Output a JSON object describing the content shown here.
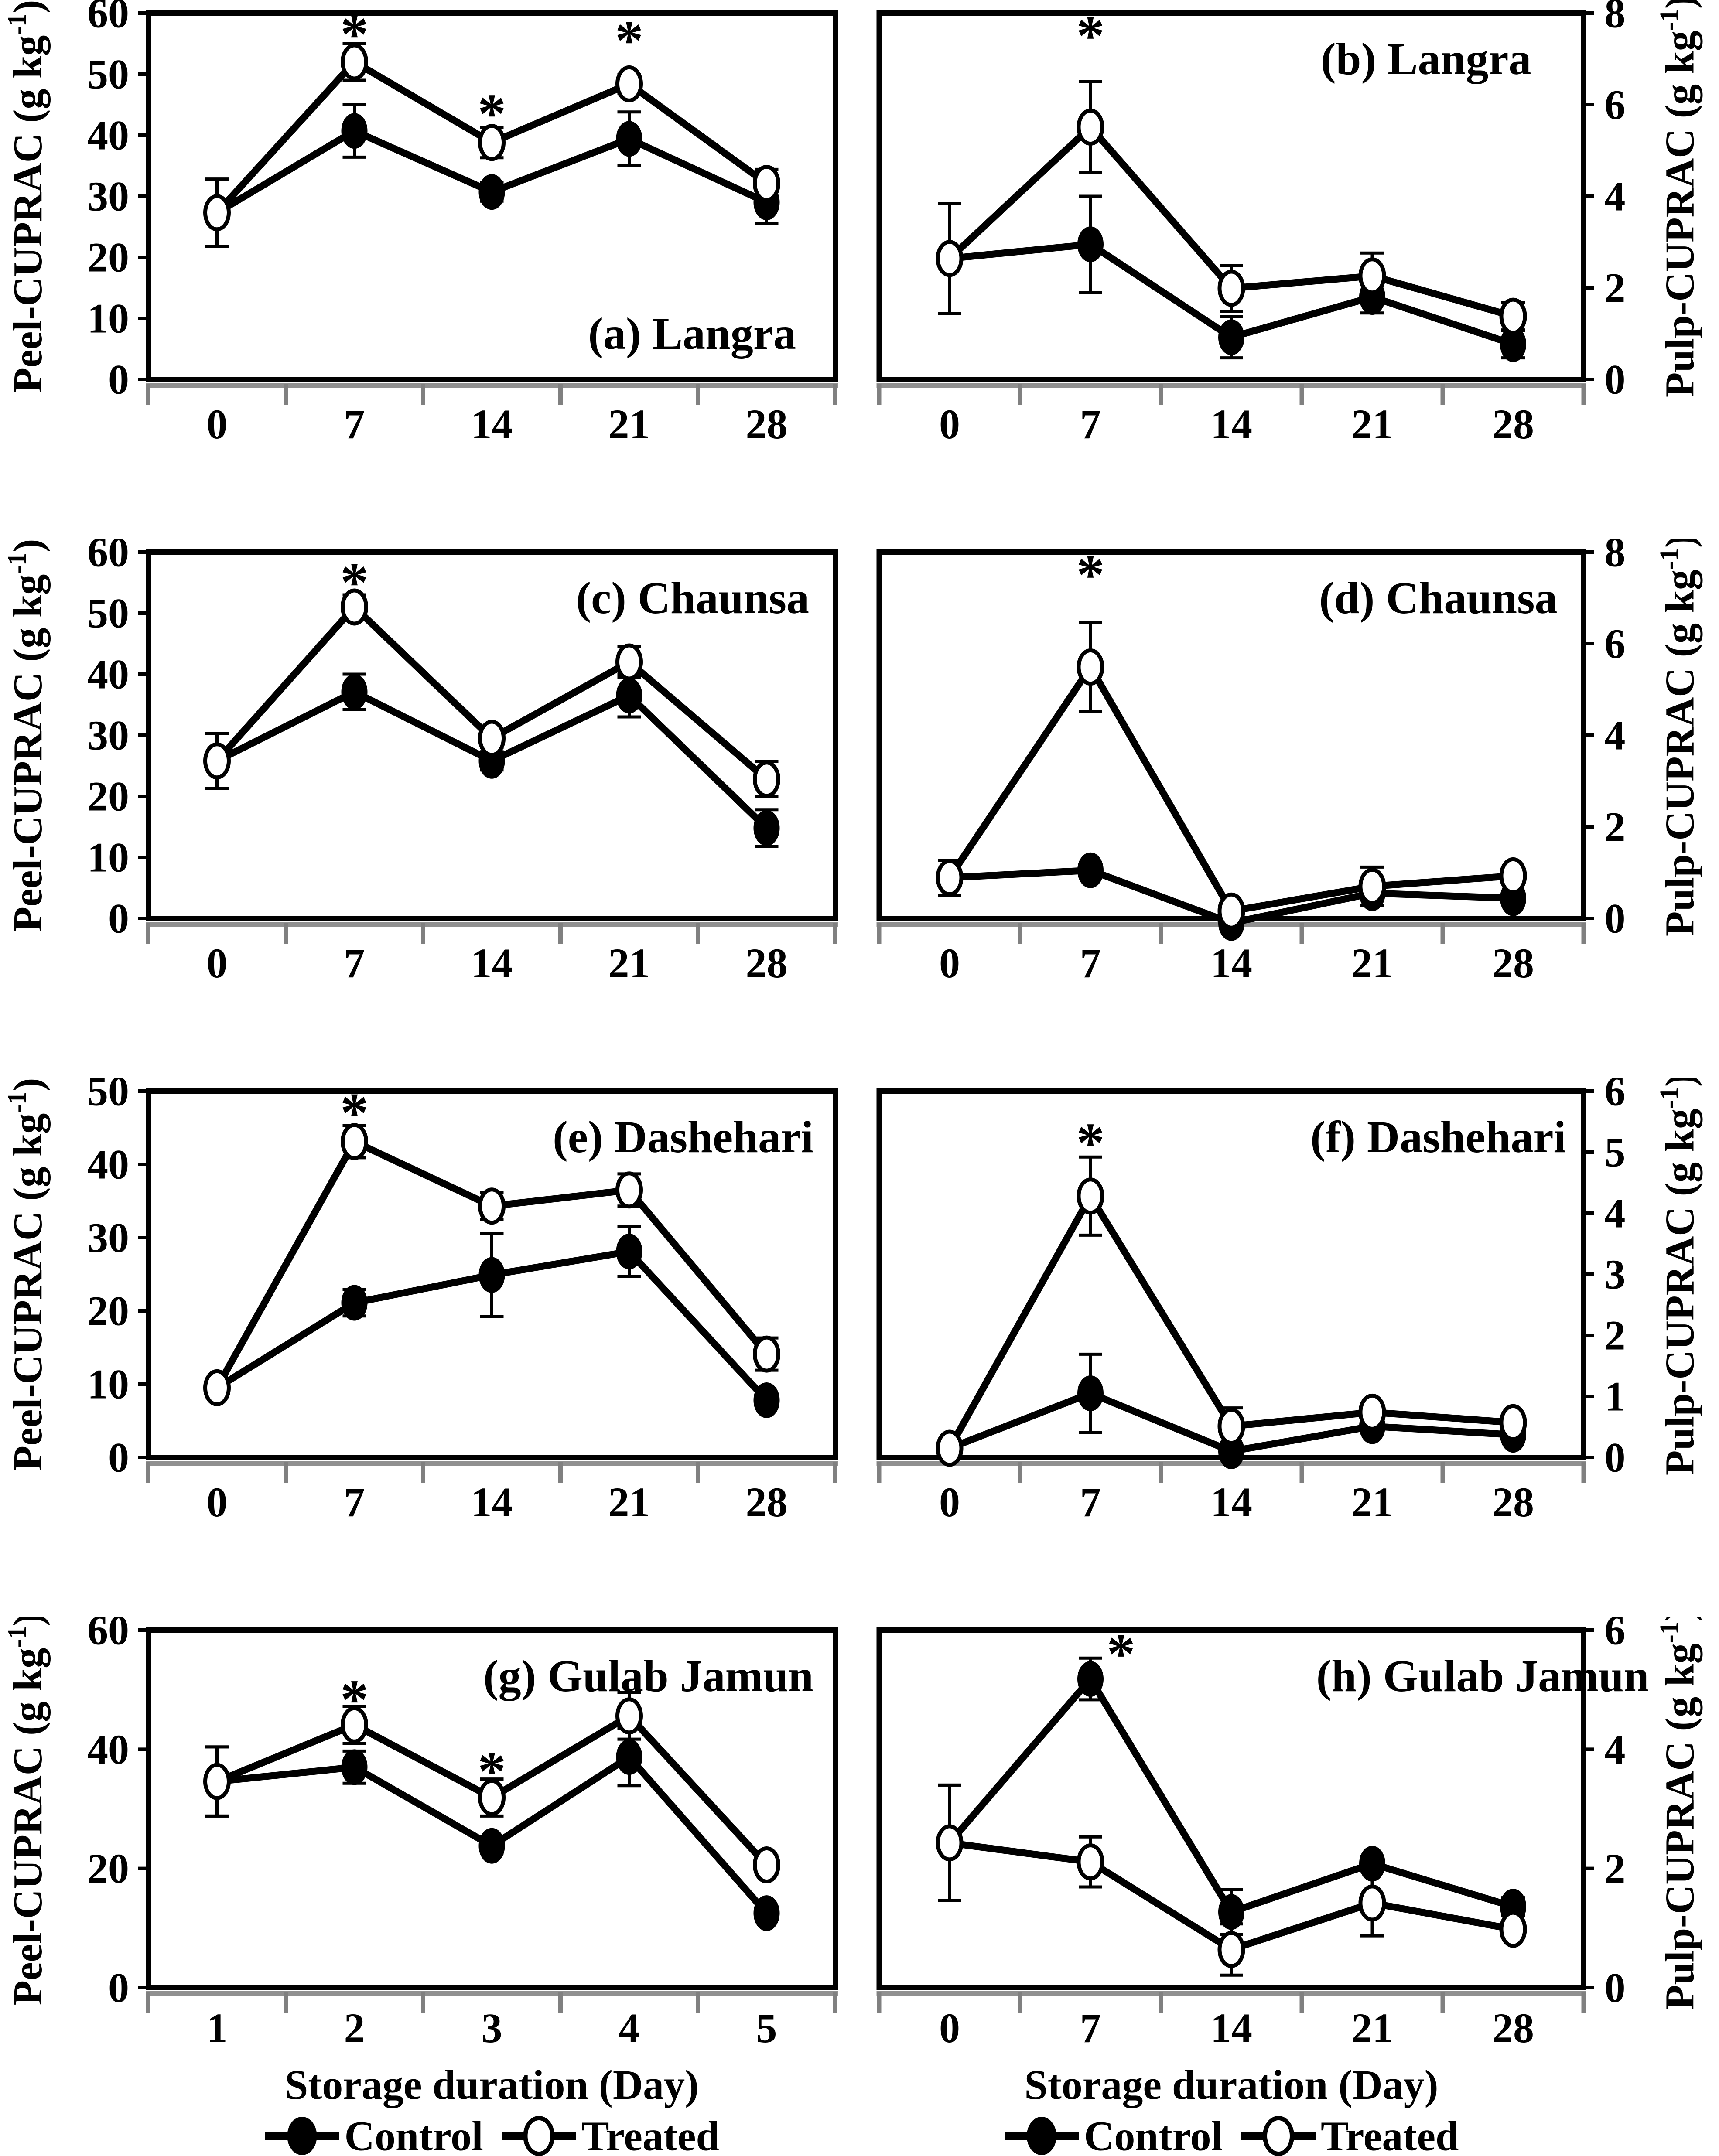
{
  "figure": {
    "x_axis_title": "Storage duration (Day)",
    "legend": [
      {
        "label": "Control",
        "marker": "filled"
      },
      {
        "label": "Treated",
        "marker": "open"
      }
    ],
    "colors": {
      "line": "#000000",
      "open_fill": "#ffffff",
      "shadow": "#909090",
      "tick_gray": "#808080"
    }
  },
  "chart_data": [
    {
      "id": "a",
      "type": "line",
      "title": "(a) Langra",
      "title_pos": "bottom-right",
      "title_dx": -90,
      "axis_side": "left",
      "ylabel_pre": "Peel-CUPRAC (g kg",
      "ylabel_sup": "-1",
      "ylabel_post": ")",
      "ylim": [
        0,
        60
      ],
      "yticks": [
        0,
        10,
        20,
        30,
        40,
        50,
        60
      ],
      "x_labels": [
        "0",
        "7",
        "14",
        "21",
        "28"
      ],
      "show_x_title": false,
      "series": [
        {
          "name": "Control",
          "marker": "filled",
          "values": [
            27.3,
            40.7,
            30.7,
            39.4,
            29.0
          ],
          "errors": [
            5.5,
            4.3,
            1.5,
            4.4,
            3.5
          ]
        },
        {
          "name": "Treated",
          "marker": "open",
          "values": [
            27.3,
            52.0,
            38.8,
            48.4,
            32.1
          ],
          "errors": [
            5.5,
            3.0,
            2.5,
            1.5,
            2.3
          ]
        }
      ],
      "asterisks": [
        {
          "xi": 1,
          "y": 56.5,
          "dx": 0
        },
        {
          "xi": 2,
          "y": 43.5,
          "dx": 0
        },
        {
          "xi": 3,
          "y": 55.5,
          "dx": 0
        }
      ]
    },
    {
      "id": "b",
      "type": "line",
      "title": "(b) Langra",
      "title_pos": "top-right",
      "title_dx": -120,
      "axis_side": "right",
      "ylabel_pre": "Pulp-CUPRAC (g kg",
      "ylabel_sup": "-1",
      "ylabel_post": ")",
      "ylim": [
        0,
        8
      ],
      "yticks": [
        0,
        2,
        4,
        6,
        8
      ],
      "x_labels": [
        "0",
        "7",
        "14",
        "21",
        "28"
      ],
      "show_x_title": false,
      "series": [
        {
          "name": "Control",
          "marker": "filled",
          "values": [
            2.64,
            2.95,
            0.92,
            1.8,
            0.77
          ],
          "errors": [
            1.2,
            1.05,
            0.45,
            0.35,
            0.3
          ]
        },
        {
          "name": "Treated",
          "marker": "open",
          "values": [
            2.64,
            5.51,
            1.99,
            2.26,
            1.38
          ],
          "errors": [
            1.2,
            1.0,
            0.5,
            0.5,
            0.3
          ]
        }
      ],
      "asterisks": [
        {
          "xi": 1,
          "y": 7.5,
          "dx": 0
        }
      ]
    },
    {
      "id": "c",
      "type": "line",
      "title": "(c) Chaunsa",
      "title_pos": "top-right",
      "title_dx": -60,
      "axis_side": "left",
      "ylabel_pre": "Peel-CUPRAC (g kg",
      "ylabel_sup": "-1",
      "ylabel_post": ")",
      "ylim": [
        0,
        60
      ],
      "yticks": [
        0,
        10,
        20,
        30,
        40,
        50,
        60
      ],
      "x_labels": [
        "0",
        "7",
        "14",
        "21",
        "28"
      ],
      "show_x_title": false,
      "series": [
        {
          "name": "Control",
          "marker": "filled",
          "values": [
            25.8,
            37.1,
            25.8,
            36.5,
            14.8
          ],
          "errors": [
            4.5,
            2.9,
            1.5,
            3.5,
            3.0
          ]
        },
        {
          "name": "Treated",
          "marker": "open",
          "values": [
            25.8,
            51.0,
            29.5,
            42.0,
            22.8
          ],
          "errors": [
            4.5,
            2.0,
            1.5,
            2.5,
            2.9
          ]
        }
      ],
      "asterisks": [
        {
          "xi": 1,
          "y": 55.0,
          "dx": 0
        }
      ]
    },
    {
      "id": "d",
      "type": "line",
      "title": "(d) Chaunsa",
      "title_pos": "top-right",
      "title_dx": -60,
      "axis_side": "right",
      "ylabel_pre": "Pulp-CUPRAC (g kg",
      "ylabel_sup": "-1",
      "ylabel_post": ")",
      "ylim": [
        0,
        8
      ],
      "yticks": [
        0,
        2,
        4,
        6,
        8
      ],
      "x_labels": [
        "0",
        "7",
        "14",
        "21",
        "28"
      ],
      "show_x_title": false,
      "series": [
        {
          "name": "Control",
          "marker": "filled",
          "values": [
            0.89,
            1.05,
            -0.1,
            0.55,
            0.44
          ],
          "errors": [
            0.38,
            0.12,
            0.08,
            0.12,
            0.1
          ]
        },
        {
          "name": "Treated",
          "marker": "open",
          "values": [
            0.89,
            5.49,
            0.16,
            0.7,
            0.93
          ],
          "errors": [
            0.38,
            0.97,
            0.1,
            0.42,
            0.15
          ]
        }
      ],
      "asterisks": [
        {
          "xi": 1,
          "y": 7.5,
          "dx": 0
        }
      ]
    },
    {
      "id": "e",
      "type": "line",
      "title": "(e) Dashehari",
      "title_pos": "top-right",
      "title_dx": -50,
      "axis_side": "left",
      "ylabel_pre": "Peel-CUPRAC (g kg",
      "ylabel_sup": "-1",
      "ylabel_post": ")",
      "ylim": [
        0,
        50
      ],
      "yticks": [
        0,
        10,
        20,
        30,
        40,
        50
      ],
      "x_labels": [
        "0",
        "7",
        "14",
        "21",
        "28"
      ],
      "show_x_title": false,
      "series": [
        {
          "name": "Control",
          "marker": "filled",
          "values": [
            9.5,
            21.1,
            24.9,
            28.1,
            7.8
          ],
          "errors": [
            0.8,
            1.8,
            5.7,
            3.4,
            0.8
          ]
        },
        {
          "name": "Treated",
          "marker": "open",
          "values": [
            9.5,
            43.1,
            34.3,
            36.5,
            14.1
          ],
          "errors": [
            0.8,
            2.2,
            1.8,
            2.2,
            2.2
          ]
        }
      ],
      "asterisks": [
        {
          "xi": 1,
          "y": 47.0,
          "dx": 0
        }
      ]
    },
    {
      "id": "f",
      "type": "line",
      "title": "(f) Dashehari",
      "title_pos": "top-right",
      "title_dx": -40,
      "axis_side": "right",
      "ylabel_pre": "Pulp-CUPRAC (g kg",
      "ylabel_sup": "-1",
      "ylabel_post": ")",
      "ylim": [
        0,
        6
      ],
      "yticks": [
        0,
        1,
        2,
        3,
        4,
        5,
        6
      ],
      "x_labels": [
        "0",
        "7",
        "14",
        "21",
        "28"
      ],
      "show_x_title": false,
      "series": [
        {
          "name": "Control",
          "marker": "filled",
          "values": [
            0.15,
            1.05,
            0.1,
            0.51,
            0.37
          ],
          "errors": [
            0.07,
            0.64,
            0.12,
            0.1,
            0.1
          ]
        },
        {
          "name": "Treated",
          "marker": "open",
          "values": [
            0.15,
            4.28,
            0.51,
            0.74,
            0.57
          ],
          "errors": [
            0.07,
            0.64,
            0.3,
            0.12,
            0.12
          ]
        }
      ],
      "asterisks": [
        {
          "xi": 1,
          "y": 5.15,
          "dx": 0
        }
      ]
    },
    {
      "id": "g",
      "type": "line",
      "title": "(g) Gulab Jamun",
      "title_pos": "top-right",
      "title_dx": -50,
      "axis_side": "left",
      "ylabel_pre": "Peel-CUPRAC (g kg",
      "ylabel_sup": "-1",
      "ylabel_post": ")",
      "ylim": [
        0,
        60
      ],
      "yticks": [
        0,
        20,
        40,
        60
      ],
      "x_labels": [
        "1",
        "2",
        "3",
        "4",
        "5"
      ],
      "show_x_title": true,
      "series": [
        {
          "name": "Control",
          "marker": "filled",
          "values": [
            34.6,
            37.0,
            23.8,
            38.7,
            12.5
          ],
          "errors": [
            5.8,
            2.7,
            1.2,
            4.8,
            1.0
          ]
        },
        {
          "name": "Treated",
          "marker": "open",
          "values": [
            34.6,
            44.1,
            31.9,
            45.6,
            20.6
          ],
          "errors": [
            5.8,
            3.1,
            3.1,
            3.9,
            1.5
          ]
        }
      ],
      "asterisks": [
        {
          "xi": 1,
          "y": 48.3,
          "dx": 0
        },
        {
          "xi": 2,
          "y": 36.3,
          "dx": 0
        }
      ]
    },
    {
      "id": "h",
      "type": "line",
      "title": "(h) Gulab Jamun",
      "title_pos": "top-right",
      "title_dx": 150,
      "axis_side": "right",
      "ylabel_pre": "Pulp-CUPRAC (g kg",
      "ylabel_sup": "-1",
      "ylabel_post": ")",
      "ylim": [
        0,
        6
      ],
      "yticks": [
        0,
        2,
        4,
        6
      ],
      "x_labels": [
        "0",
        "7",
        "14",
        "21",
        "28"
      ],
      "show_x_title": true,
      "series": [
        {
          "name": "Control",
          "marker": "filled",
          "values": [
            2.43,
            5.18,
            1.27,
            2.08,
            1.36
          ],
          "errors": [
            0.97,
            0.35,
            0.38,
            0.12,
            0.15
          ]
        },
        {
          "name": "Treated",
          "marker": "open",
          "values": [
            2.43,
            2.11,
            0.64,
            1.42,
            0.98
          ],
          "errors": [
            0.97,
            0.42,
            0.43,
            0.55,
            0.1
          ]
        }
      ],
      "asterisks": [
        {
          "xi": 1,
          "y": 5.6,
          "dx": 70
        }
      ]
    }
  ]
}
